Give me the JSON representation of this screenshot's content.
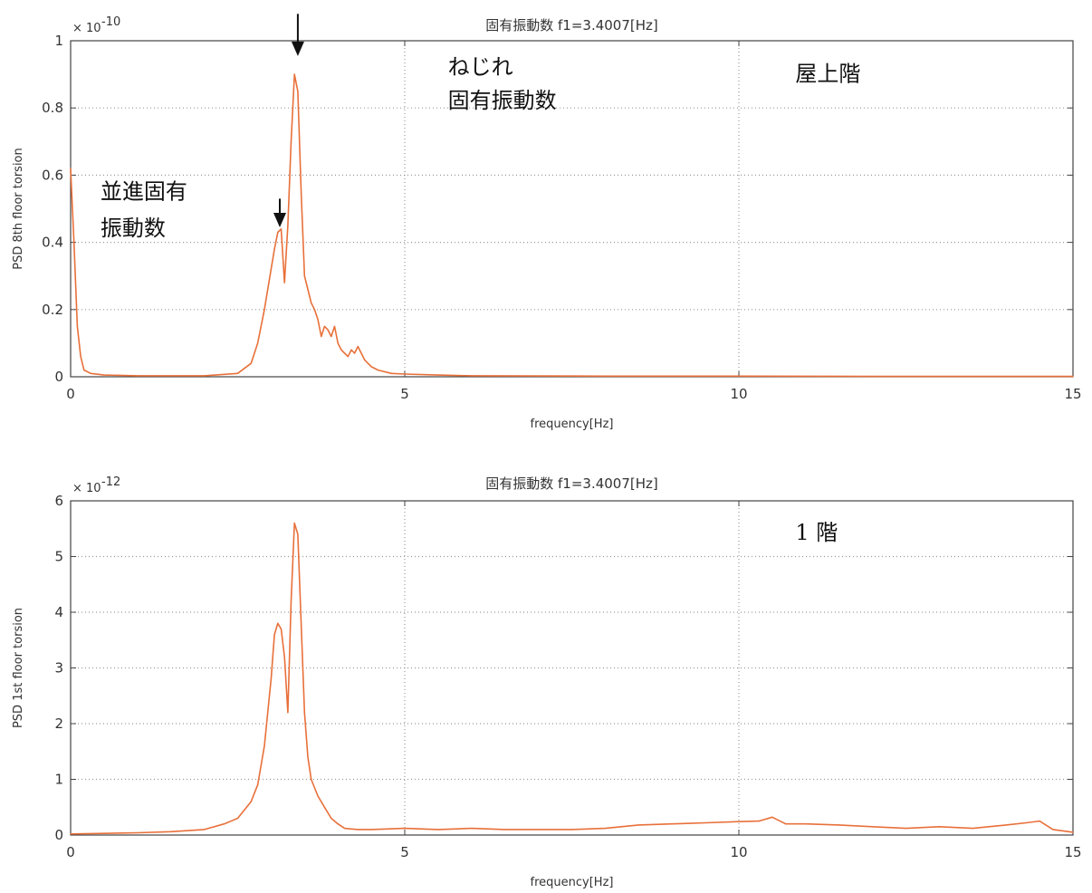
{
  "chart_data": [
    {
      "type": "line",
      "title": "固有振動数  f1=3.4007[Hz]",
      "xlabel": "frequency[Hz]",
      "ylabel": "PSD 8th floor torsion",
      "y_multiplier": "× 10",
      "y_exponent": "-10",
      "xlim": [
        0,
        15
      ],
      "ylim": [
        0,
        1
      ],
      "xticks": [
        "0",
        "5",
        "10",
        "15"
      ],
      "yticks": [
        "0",
        "0.2",
        "0.4",
        "0.6",
        "0.8",
        "1"
      ],
      "grid": true,
      "series": [
        {
          "color": "#e8703a",
          "x": [
            0,
            0.05,
            0.1,
            0.15,
            0.2,
            0.3,
            0.5,
            1,
            2,
            2.5,
            2.7,
            2.8,
            2.9,
            3.0,
            3.05,
            3.1,
            3.15,
            3.2,
            3.25,
            3.3,
            3.35,
            3.4,
            3.45,
            3.5,
            3.55,
            3.6,
            3.65,
            3.7,
            3.75,
            3.8,
            3.85,
            3.9,
            3.95,
            4.0,
            4.05,
            4.1,
            4.15,
            4.2,
            4.25,
            4.3,
            4.35,
            4.4,
            4.5,
            4.6,
            4.8,
            5.0,
            5.5,
            6,
            8,
            10,
            12,
            15
          ],
          "values": [
            0.62,
            0.4,
            0.15,
            0.06,
            0.02,
            0.01,
            0.005,
            0.003,
            0.003,
            0.01,
            0.04,
            0.1,
            0.2,
            0.32,
            0.38,
            0.43,
            0.44,
            0.28,
            0.45,
            0.7,
            0.9,
            0.85,
            0.55,
            0.3,
            0.26,
            0.22,
            0.2,
            0.17,
            0.12,
            0.15,
            0.14,
            0.12,
            0.15,
            0.1,
            0.08,
            0.07,
            0.06,
            0.08,
            0.07,
            0.09,
            0.07,
            0.05,
            0.03,
            0.02,
            0.01,
            0.008,
            0.005,
            0.003,
            0.002,
            0.002,
            0.001,
            0.001
          ]
        }
      ],
      "annotations": [
        {
          "text": "ねじれ",
          "x": 7.0,
          "y": 0.9
        },
        {
          "text": "固有振動数",
          "x": 7.0,
          "y": 0.8
        },
        {
          "text": "屋上階",
          "x": 12.2,
          "y": 0.88
        },
        {
          "text": "並進固有",
          "x": 1.8,
          "y": 0.53
        },
        {
          "text": "振動数",
          "x": 1.8,
          "y": 0.42
        }
      ],
      "arrows": [
        {
          "x": 3.4,
          "y_from": 1.08,
          "y_to": 0.96
        },
        {
          "x": 3.13,
          "y_from": 0.53,
          "y_to": 0.45
        }
      ]
    },
    {
      "type": "line",
      "title": "固有振動数  f1=3.4007[Hz]",
      "xlabel": "frequency[Hz]",
      "ylabel": "PSD 1st floor torsion",
      "y_multiplier": "× 10",
      "y_exponent": "-12",
      "xlim": [
        0,
        15
      ],
      "ylim": [
        0,
        6
      ],
      "xticks": [
        "0",
        "5",
        "10",
        "15"
      ],
      "yticks": [
        "0",
        "1",
        "2",
        "3",
        "4",
        "5",
        "6"
      ],
      "grid": true,
      "series": [
        {
          "color": "#e8703a",
          "x": [
            0,
            0.5,
            1,
            1.5,
            2.0,
            2.3,
            2.5,
            2.7,
            2.8,
            2.9,
            3.0,
            3.05,
            3.1,
            3.15,
            3.2,
            3.25,
            3.3,
            3.35,
            3.4,
            3.45,
            3.5,
            3.55,
            3.6,
            3.7,
            3.8,
            3.9,
            4.0,
            4.1,
            4.3,
            4.5,
            5.0,
            5.5,
            6,
            6.5,
            7,
            7.5,
            8,
            8.5,
            9,
            9.5,
            10,
            10.3,
            10.5,
            10.7,
            11,
            11.5,
            12,
            12.5,
            13,
            13.5,
            14,
            14.3,
            14.5,
            14.7,
            15
          ],
          "values": [
            0.02,
            0.03,
            0.04,
            0.06,
            0.1,
            0.2,
            0.3,
            0.6,
            0.9,
            1.6,
            2.8,
            3.6,
            3.8,
            3.7,
            3.2,
            2.2,
            4.2,
            5.6,
            5.4,
            3.8,
            2.2,
            1.4,
            1.0,
            0.7,
            0.5,
            0.3,
            0.2,
            0.12,
            0.1,
            0.1,
            0.12,
            0.1,
            0.12,
            0.1,
            0.1,
            0.1,
            0.12,
            0.18,
            0.2,
            0.22,
            0.24,
            0.25,
            0.32,
            0.2,
            0.2,
            0.18,
            0.15,
            0.12,
            0.15,
            0.12,
            0.18,
            0.22,
            0.25,
            0.1,
            0.05
          ]
        }
      ],
      "annotations": [
        {
          "text": "1 階",
          "x": 12.2,
          "y": 5.3
        }
      ],
      "arrows": []
    }
  ]
}
